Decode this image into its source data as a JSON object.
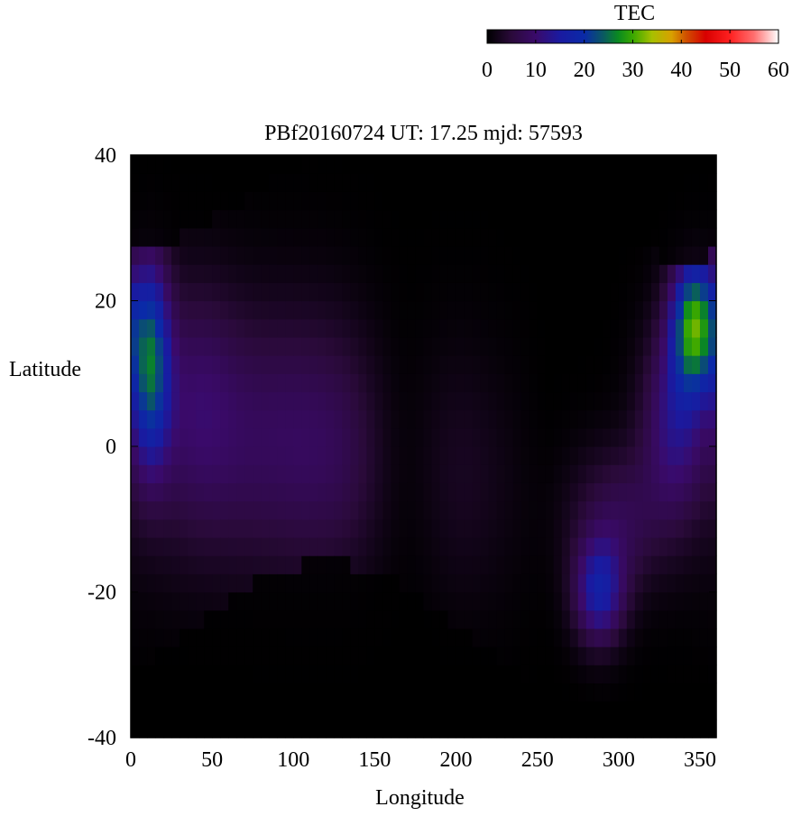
{
  "chart_data": {
    "type": "heatmap",
    "title": "PBf20160724  UT: 17.25  mjd: 57593",
    "xlabel": "Longitude",
    "ylabel": "Latitude",
    "xlim": [
      0,
      360
    ],
    "ylim": [
      -40,
      40
    ],
    "xticks": [
      0,
      50,
      100,
      150,
      200,
      250,
      300,
      350
    ],
    "yticks": [
      -40,
      -20,
      0,
      20,
      40
    ],
    "grid": false,
    "colorbar": {
      "label": "TEC",
      "range": [
        0,
        60
      ],
      "ticks": [
        0,
        10,
        20,
        30,
        40,
        50,
        60
      ],
      "placement": "top-right",
      "palette": [
        {
          "v": 0,
          "c": "#000000"
        },
        {
          "v": 5,
          "c": "#2a0a3a"
        },
        {
          "v": 10,
          "c": "#3a0a6a"
        },
        {
          "v": 15,
          "c": "#1a1aa0"
        },
        {
          "v": 20,
          "c": "#0a2aa8"
        },
        {
          "v": 24,
          "c": "#0a5a60"
        },
        {
          "v": 27,
          "c": "#0a8a20"
        },
        {
          "v": 30,
          "c": "#3aa800"
        },
        {
          "v": 34,
          "c": "#a8c000"
        },
        {
          "v": 38,
          "c": "#d8a000"
        },
        {
          "v": 41,
          "c": "#d05000"
        },
        {
          "v": 45,
          "c": "#d80000"
        },
        {
          "v": 50,
          "c": "#ff2020"
        },
        {
          "v": 55,
          "c": "#ff7070"
        },
        {
          "v": 60,
          "c": "#ffffff"
        }
      ]
    },
    "cell_size": {
      "dlon": 5,
      "dlat": 2.5
    },
    "features": [
      {
        "lon": 12,
        "lat": 12,
        "slon": 12,
        "slat": 14,
        "amp": 22
      },
      {
        "lon": 347,
        "lat": 17,
        "slon": 14,
        "slat": 9,
        "amp": 28
      },
      {
        "lon": 335,
        "lat": 4,
        "slon": 20,
        "slat": 13,
        "amp": 12
      },
      {
        "lon": 288,
        "lat": -20,
        "slon": 15,
        "slat": 7,
        "amp": 15
      },
      {
        "lon": 300,
        "lat": -10,
        "slon": 30,
        "slat": 10,
        "amp": 7
      },
      {
        "lon": 40,
        "lat": 8,
        "slon": 25,
        "slat": 16,
        "amp": 5
      }
    ]
  }
}
